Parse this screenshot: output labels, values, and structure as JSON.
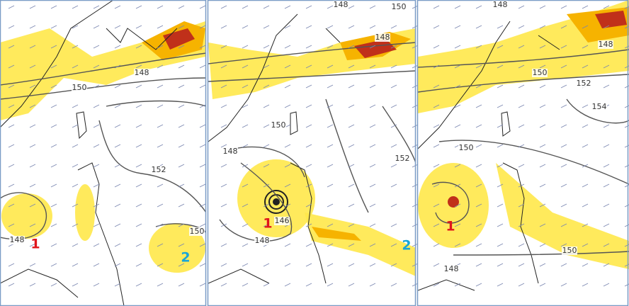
{
  "panels": [
    {
      "contour_labels": [
        "148",
        "150",
        "152",
        "150",
        "148"
      ],
      "markers": [
        "1",
        "2"
      ]
    },
    {
      "contour_labels": [
        "148",
        "150",
        "148",
        "150",
        "148",
        "152",
        "146",
        "148"
      ],
      "markers": [
        "1",
        "2"
      ]
    },
    {
      "contour_labels": [
        "148",
        "148",
        "150",
        "152",
        "154",
        "150",
        "150",
        "148"
      ],
      "markers": [
        "1"
      ]
    }
  ]
}
